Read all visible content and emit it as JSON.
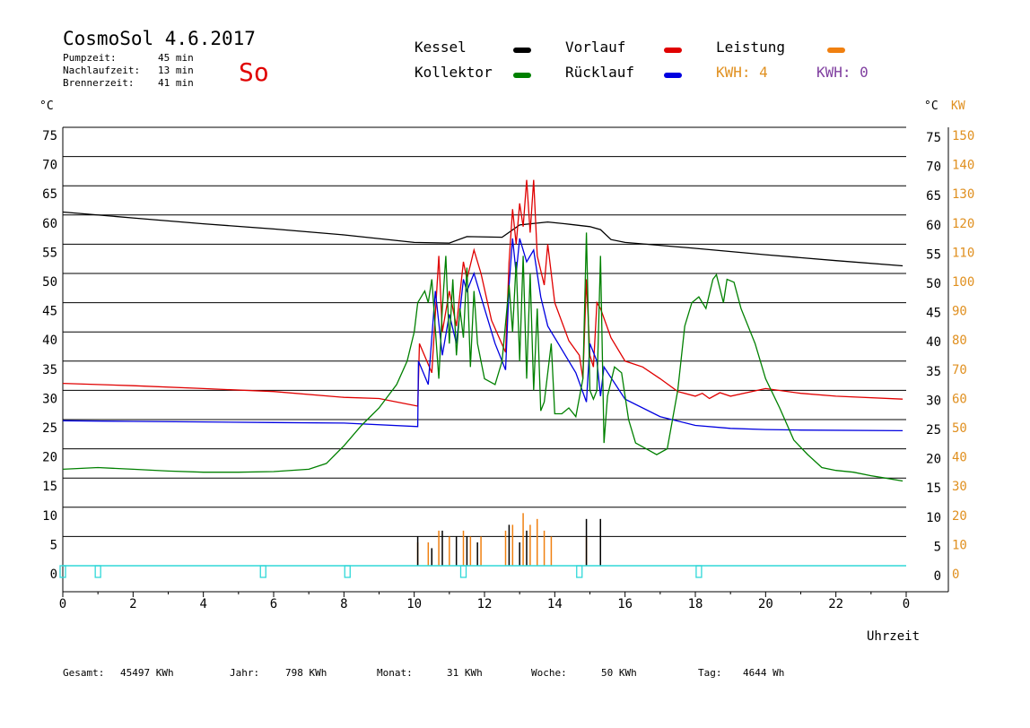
{
  "header": {
    "title": "CosmoSol 4.6.2017",
    "day": "So",
    "info": [
      {
        "label": "Pumpzeit:",
        "value": "45 min"
      },
      {
        "label": "Nachlaufzeit:",
        "value": "13 min"
      },
      {
        "label": "Brennerzeit:",
        "value": "41 min"
      }
    ]
  },
  "legend": {
    "items": [
      {
        "label": "Kessel",
        "color": "#000000"
      },
      {
        "label": "Vorlauf",
        "color": "#e00000"
      },
      {
        "label": "Leistung",
        "color": "#f08010"
      },
      {
        "label": "Kollektor",
        "color": "#008000"
      },
      {
        "label": "Rücklauf",
        "color": "#0000e0"
      }
    ],
    "kwh": [
      {
        "label": "KWH: 4",
        "color": "#e09020"
      },
      {
        "label": "KWH: 0",
        "color": "#8040a0"
      }
    ]
  },
  "axes": {
    "left_unit": "°C",
    "right_unit_c": "°C",
    "right_unit_kw": "KW",
    "y_ticks": [
      75,
      70,
      65,
      60,
      55,
      50,
      45,
      40,
      35,
      30,
      25,
      20,
      15,
      10,
      5,
      0
    ],
    "kw_ticks": [
      150,
      140,
      130,
      120,
      110,
      100,
      90,
      80,
      70,
      60,
      50,
      40,
      30,
      20,
      10,
      0
    ],
    "x_ticks": [
      "0",
      "2",
      "4",
      "6",
      "8",
      "10",
      "12",
      "14",
      "16",
      "18",
      "20",
      "22",
      "0"
    ],
    "xlabel": "Uhrzeit"
  },
  "footer": [
    {
      "label": "Gesamt:",
      "value": "45497 KWh"
    },
    {
      "label": "Jahr:",
      "value": "798 KWh"
    },
    {
      "label": "Monat:",
      "value": "31 KWh"
    },
    {
      "label": "Woche:",
      "value": "50 KWh"
    },
    {
      "label": "Tag:",
      "value": "4644 Wh"
    }
  ],
  "chart_data": {
    "type": "line",
    "xlabel": "Uhrzeit",
    "ylabel": "°C",
    "xlim": [
      0,
      24
    ],
    "ylim": [
      0,
      75
    ],
    "y2lim": [
      0,
      150
    ],
    "grid": true,
    "legend_position": "top",
    "series": [
      {
        "name": "Kessel",
        "color": "#000000",
        "points": [
          [
            0,
            60.5
          ],
          [
            2,
            59.5
          ],
          [
            4,
            58.5
          ],
          [
            6,
            57.6
          ],
          [
            8,
            56.6
          ],
          [
            10,
            55.3
          ],
          [
            11,
            55.2
          ],
          [
            11.5,
            56.3
          ],
          [
            12.5,
            56.2
          ],
          [
            13,
            58.3
          ],
          [
            13.8,
            58.8
          ],
          [
            14.3,
            58.5
          ],
          [
            15,
            58
          ],
          [
            15.3,
            57.5
          ],
          [
            15.6,
            55.8
          ],
          [
            16,
            55.3
          ],
          [
            18,
            54.3
          ],
          [
            20,
            53.2
          ],
          [
            22,
            52.2
          ],
          [
            23.9,
            51.3
          ]
        ]
      },
      {
        "name": "Vorlauf",
        "color": "#e00000",
        "points": [
          [
            0,
            31.2
          ],
          [
            2,
            30.8
          ],
          [
            4,
            30.3
          ],
          [
            6,
            29.8
          ],
          [
            8,
            28.8
          ],
          [
            9,
            28.6
          ],
          [
            10.1,
            27.3
          ],
          [
            10.15,
            38
          ],
          [
            10.5,
            33
          ],
          [
            10.7,
            53
          ],
          [
            10.8,
            40
          ],
          [
            11,
            47
          ],
          [
            11.2,
            41
          ],
          [
            11.4,
            52
          ],
          [
            11.5,
            49
          ],
          [
            11.7,
            54
          ],
          [
            11.9,
            50
          ],
          [
            12.2,
            42
          ],
          [
            12.6,
            36.5
          ],
          [
            12.7,
            52
          ],
          [
            12.8,
            61
          ],
          [
            12.9,
            55
          ],
          [
            13,
            62
          ],
          [
            13.1,
            58
          ],
          [
            13.2,
            66
          ],
          [
            13.3,
            57
          ],
          [
            13.4,
            66
          ],
          [
            13.5,
            53
          ],
          [
            13.7,
            48
          ],
          [
            13.8,
            55
          ],
          [
            14,
            45
          ],
          [
            14.4,
            38.5
          ],
          [
            14.7,
            36
          ],
          [
            14.8,
            32
          ],
          [
            14.9,
            49
          ],
          [
            15,
            36
          ],
          [
            15.1,
            34
          ],
          [
            15.2,
            45
          ],
          [
            15.3,
            44
          ],
          [
            15.6,
            39
          ],
          [
            16,
            35
          ],
          [
            16.5,
            34
          ],
          [
            17,
            32
          ],
          [
            17.5,
            29.8
          ],
          [
            18,
            29
          ],
          [
            18.2,
            29.5
          ],
          [
            18.4,
            28.6
          ],
          [
            18.7,
            29.6
          ],
          [
            19,
            29
          ],
          [
            20,
            30.3
          ],
          [
            21,
            29.5
          ],
          [
            22,
            29
          ],
          [
            23.9,
            28.5
          ]
        ]
      },
      {
        "name": "Rücklauf",
        "color": "#0000e0",
        "points": [
          [
            0,
            24.8
          ],
          [
            2,
            24.7
          ],
          [
            4,
            24.6
          ],
          [
            6,
            24.5
          ],
          [
            8,
            24.4
          ],
          [
            10.1,
            23.8
          ],
          [
            10.12,
            35
          ],
          [
            10.4,
            31
          ],
          [
            10.6,
            47
          ],
          [
            10.8,
            36
          ],
          [
            11,
            43
          ],
          [
            11.2,
            38
          ],
          [
            11.4,
            49
          ],
          [
            11.5,
            47
          ],
          [
            11.7,
            50
          ],
          [
            12,
            44
          ],
          [
            12.3,
            38
          ],
          [
            12.6,
            33.5
          ],
          [
            12.7,
            48
          ],
          [
            12.8,
            56
          ],
          [
            12.9,
            50
          ],
          [
            13,
            56
          ],
          [
            13.2,
            52
          ],
          [
            13.4,
            54
          ],
          [
            13.6,
            46
          ],
          [
            13.8,
            41
          ],
          [
            14.2,
            37
          ],
          [
            14.6,
            33
          ],
          [
            14.9,
            28
          ],
          [
            15,
            38
          ],
          [
            15.2,
            35
          ],
          [
            15.3,
            29
          ],
          [
            15.4,
            34
          ],
          [
            16,
            28.5
          ],
          [
            17,
            25.5
          ],
          [
            18,
            24
          ],
          [
            19,
            23.5
          ],
          [
            20,
            23.3
          ],
          [
            21,
            23.2
          ],
          [
            23.9,
            23.1
          ]
        ]
      },
      {
        "name": "Kollektor",
        "color": "#008000",
        "points": [
          [
            0,
            16.5
          ],
          [
            1,
            16.8
          ],
          [
            2,
            16.5
          ],
          [
            3,
            16.2
          ],
          [
            4,
            16
          ],
          [
            5,
            16
          ],
          [
            6,
            16.1
          ],
          [
            7,
            16.5
          ],
          [
            7.5,
            17.5
          ],
          [
            8,
            20.5
          ],
          [
            8.5,
            24
          ],
          [
            9,
            27
          ],
          [
            9.5,
            31
          ],
          [
            9.8,
            35
          ],
          [
            10,
            40
          ],
          [
            10.1,
            45
          ],
          [
            10.3,
            47
          ],
          [
            10.4,
            45
          ],
          [
            10.5,
            49
          ],
          [
            10.7,
            32
          ],
          [
            10.8,
            44
          ],
          [
            10.9,
            53
          ],
          [
            11,
            38
          ],
          [
            11.1,
            49
          ],
          [
            11.2,
            36
          ],
          [
            11.3,
            44
          ],
          [
            11.4,
            39
          ],
          [
            11.5,
            51
          ],
          [
            11.6,
            34
          ],
          [
            11.7,
            47
          ],
          [
            11.8,
            38
          ],
          [
            12,
            32
          ],
          [
            12.3,
            31
          ],
          [
            12.5,
            35
          ],
          [
            12.7,
            48
          ],
          [
            12.8,
            40
          ],
          [
            12.9,
            52
          ],
          [
            13,
            35
          ],
          [
            13.1,
            53
          ],
          [
            13.2,
            32
          ],
          [
            13.3,
            50
          ],
          [
            13.4,
            30
          ],
          [
            13.5,
            44
          ],
          [
            13.6,
            26.5
          ],
          [
            13.7,
            28
          ],
          [
            13.9,
            38
          ],
          [
            14,
            26
          ],
          [
            14.2,
            26
          ],
          [
            14.4,
            27
          ],
          [
            14.6,
            25.5
          ],
          [
            14.8,
            32
          ],
          [
            14.9,
            57
          ],
          [
            15,
            30
          ],
          [
            15.1,
            28.5
          ],
          [
            15.2,
            30
          ],
          [
            15.3,
            53
          ],
          [
            15.4,
            21
          ],
          [
            15.5,
            29
          ],
          [
            15.7,
            34
          ],
          [
            15.9,
            33
          ],
          [
            16.1,
            25
          ],
          [
            16.3,
            21
          ],
          [
            16.6,
            20
          ],
          [
            16.9,
            19
          ],
          [
            17.2,
            20
          ],
          [
            17.5,
            30
          ],
          [
            17.7,
            41
          ],
          [
            17.9,
            45
          ],
          [
            18.1,
            46
          ],
          [
            18.3,
            44
          ],
          [
            18.5,
            49
          ],
          [
            18.6,
            49.8
          ],
          [
            18.8,
            45
          ],
          [
            18.9,
            49
          ],
          [
            19.1,
            48.5
          ],
          [
            19.3,
            44
          ],
          [
            19.7,
            38
          ],
          [
            20,
            32
          ],
          [
            20.4,
            27
          ],
          [
            20.8,
            21.5
          ],
          [
            21.2,
            19
          ],
          [
            21.6,
            16.8
          ],
          [
            22,
            16.3
          ],
          [
            22.5,
            16
          ],
          [
            23,
            15.4
          ],
          [
            23.4,
            15
          ],
          [
            23.9,
            14.5
          ]
        ]
      }
    ],
    "spikes": [
      {
        "name": "Leistung-Spitzen",
        "color": "#f08010",
        "values": [
          [
            10.1,
            4
          ],
          [
            10.4,
            4
          ],
          [
            10.7,
            6
          ],
          [
            11,
            5
          ],
          [
            11.4,
            6
          ],
          [
            11.6,
            5
          ],
          [
            11.9,
            5
          ],
          [
            12.6,
            6
          ],
          [
            12.8,
            7
          ],
          [
            13.1,
            9
          ],
          [
            13.3,
            7
          ],
          [
            13.5,
            8
          ],
          [
            13.7,
            6
          ],
          [
            13.9,
            5
          ],
          [
            14.9,
            5
          ],
          [
            15.3,
            5
          ]
        ]
      },
      {
        "name": "Kessel-Spitzen",
        "color": "#000000",
        "values": [
          [
            10.1,
            5
          ],
          [
            10.5,
            3
          ],
          [
            10.8,
            6
          ],
          [
            11.2,
            5
          ],
          [
            11.5,
            5
          ],
          [
            11.8,
            4
          ],
          [
            12.7,
            7
          ],
          [
            13,
            4
          ],
          [
            13.2,
            6
          ],
          [
            14.9,
            8
          ],
          [
            15.3,
            8
          ]
        ]
      }
    ],
    "pump_markers": [
      0,
      1,
      5.7,
      8.1,
      11.4,
      14.7,
      18.1
    ]
  }
}
